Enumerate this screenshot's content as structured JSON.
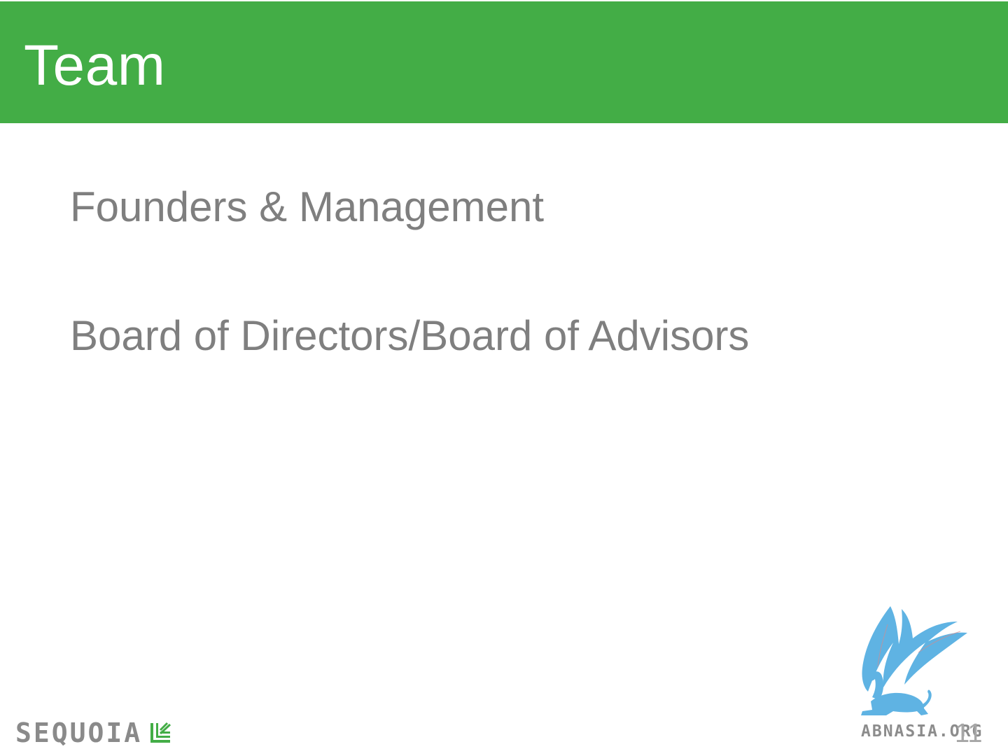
{
  "slide": {
    "title": "Team",
    "bullets": [
      "Founders & Management",
      "Board of Directors/Board of Advisors"
    ],
    "page_number": "11"
  },
  "footer": {
    "logo_text": "SEQUOIA"
  },
  "watermark": {
    "text": "ABNASIA.ORG",
    "icon": "griffin-icon"
  },
  "colors": {
    "accent": "#43ad46",
    "title_text": "#ffffff",
    "body_text": "#7f7f7f",
    "watermark": "#5fb3e3"
  }
}
